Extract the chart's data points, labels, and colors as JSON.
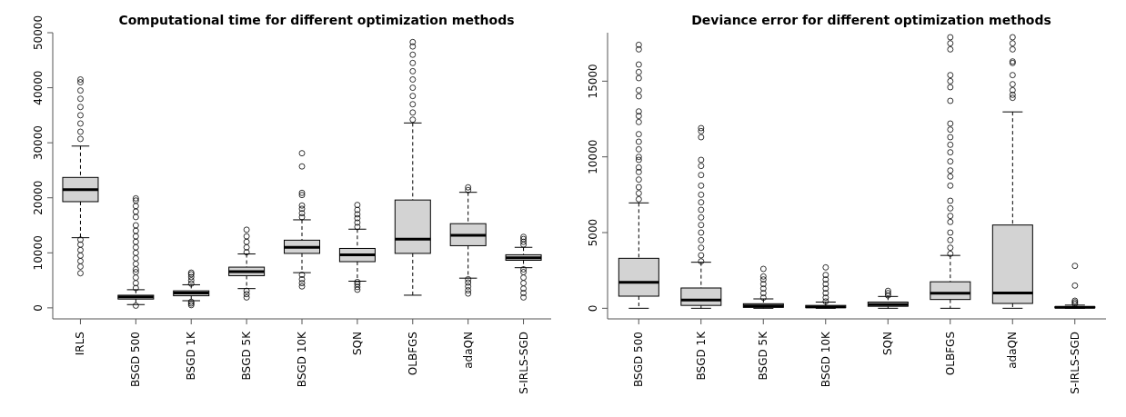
{
  "chart_data": [
    {
      "type": "box",
      "title": "Computational time for different optimization methods",
      "color": "#d3d3d3",
      "categories": [
        "IRLS",
        "BSGD 500",
        "BSGD 1K",
        "BSGD 5K",
        "BSGD 10K",
        "SQN",
        "OLBFGS",
        "adaQN",
        "S-IRLS-SGD"
      ],
      "ylim": [
        -2000,
        50000
      ],
      "yticks": [
        0,
        10000,
        20000,
        30000,
        40000,
        50000
      ],
      "boxes": [
        {
          "low": 12750,
          "q1": 19300,
          "median": 21500,
          "q3": 23700,
          "high": 29400,
          "outliers": [
            6300,
            7500,
            8500,
            9500,
            10500,
            11500,
            12400,
            30700,
            32000,
            33500,
            35000,
            36500,
            38000,
            39500,
            41000,
            41500
          ]
        },
        {
          "low": 600,
          "q1": 1600,
          "median": 2000,
          "q3": 2300,
          "high": 3300,
          "outliers": [
            400,
            3600,
            4500,
            5500,
            6500,
            7000,
            8000,
            9000,
            10000,
            11000,
            12000,
            13000,
            14000,
            15000,
            16500,
            17500,
            18500,
            19500,
            19900
          ]
        },
        {
          "low": 1300,
          "q1": 2200,
          "median": 2700,
          "q3": 3100,
          "high": 4200,
          "outliers": [
            500,
            800,
            1100,
            4400,
            5000,
            5600,
            6100,
            6400
          ]
        },
        {
          "low": 3500,
          "q1": 5850,
          "median": 6600,
          "q3": 7400,
          "high": 9800,
          "outliers": [
            1900,
            2500,
            3100,
            10100,
            11000,
            12000,
            13000,
            14200
          ]
        },
        {
          "low": 6400,
          "q1": 9900,
          "median": 11000,
          "q3": 12300,
          "high": 16000,
          "outliers": [
            3900,
            4500,
            5200,
            6000,
            16500,
            17200,
            18000,
            18600,
            20500,
            20900,
            25700,
            28100
          ]
        },
        {
          "low": 4850,
          "q1": 8400,
          "median": 9650,
          "q3": 10800,
          "high": 14300,
          "outliers": [
            3300,
            3800,
            4300,
            4700,
            14700,
            15500,
            16300,
            17000,
            17800,
            18700
          ]
        },
        {
          "low": 2300,
          "q1": 9900,
          "median": 12500,
          "q3": 19600,
          "high": 33600,
          "outliers": [
            34200,
            35500,
            37000,
            38500,
            40000,
            41500,
            43000,
            44500,
            46000,
            47500,
            48300
          ]
        },
        {
          "low": 5400,
          "q1": 11300,
          "median": 13200,
          "q3": 15300,
          "high": 21000,
          "outliers": [
            2600,
            3200,
            3900,
            4600,
            5200,
            21400,
            21900
          ]
        },
        {
          "low": 7300,
          "q1": 8650,
          "median": 9100,
          "q3": 9650,
          "high": 11000,
          "outliers": [
            1900,
            2700,
            3500,
            4500,
            5500,
            6500,
            7000,
            11500,
            12000,
            12500,
            12900
          ]
        }
      ]
    },
    {
      "type": "box",
      "title": "Deviance error for different optimization methods",
      "color": "#d3d3d3",
      "categories": [
        "BSGD 500",
        "BSGD 1K",
        "BSGD 5K",
        "BSGD 10K",
        "SQN",
        "OLBFGS",
        "adaQN",
        "S-IRLS-SGD"
      ],
      "ylim": [
        -700,
        18200
      ],
      "yticks": [
        0,
        5000,
        10000,
        15000
      ],
      "boxes": [
        {
          "low": 0,
          "q1": 800,
          "median": 1720,
          "q3": 3300,
          "high": 6960,
          "outliers": [
            7200,
            7600,
            8000,
            8500,
            9000,
            9300,
            9800,
            10000,
            10500,
            11000,
            11500,
            12300,
            12700,
            13000,
            14000,
            14400,
            15200,
            15600,
            16100,
            17100,
            17400
          ]
        },
        {
          "low": 0,
          "q1": 190,
          "median": 540,
          "q3": 1340,
          "high": 3040,
          "outliers": [
            3100,
            3500,
            4000,
            4500,
            5000,
            5500,
            6000,
            6500,
            7000,
            7500,
            8100,
            8800,
            9400,
            9800,
            11300,
            11700,
            11900
          ]
        },
        {
          "low": 0,
          "q1": 60,
          "median": 150,
          "q3": 300,
          "high": 620,
          "outliers": [
            700,
            1000,
            1300,
            1600,
            1900,
            2100,
            2600
          ]
        },
        {
          "low": 0,
          "q1": 40,
          "median": 100,
          "q3": 190,
          "high": 410,
          "outliers": [
            450,
            700,
            1000,
            1300,
            1600,
            1900,
            2200,
            2700
          ]
        },
        {
          "low": 0,
          "q1": 130,
          "median": 240,
          "q3": 410,
          "high": 780,
          "outliers": [
            850,
            1000,
            1150
          ]
        },
        {
          "low": 0,
          "q1": 580,
          "median": 990,
          "q3": 1750,
          "high": 3490,
          "outliers": [
            3600,
            4000,
            4500,
            5000,
            5700,
            6100,
            6600,
            7100,
            8100,
            8700,
            9100,
            9700,
            10300,
            10800,
            11300,
            11800,
            12200,
            13700,
            14600,
            15000,
            15400,
            17100,
            17500,
            17900
          ]
        },
        {
          "low": 0,
          "q1": 320,
          "median": 1010,
          "q3": 5500,
          "high": 12970,
          "outliers": [
            13900,
            14100,
            14400,
            14800,
            15400,
            16200,
            16300,
            17100,
            17500,
            17900
          ]
        },
        {
          "low": 0,
          "q1": 30,
          "median": 60,
          "q3": 100,
          "high": 210,
          "outliers": [
            300,
            400,
            500,
            1500,
            2800
          ]
        }
      ]
    }
  ]
}
